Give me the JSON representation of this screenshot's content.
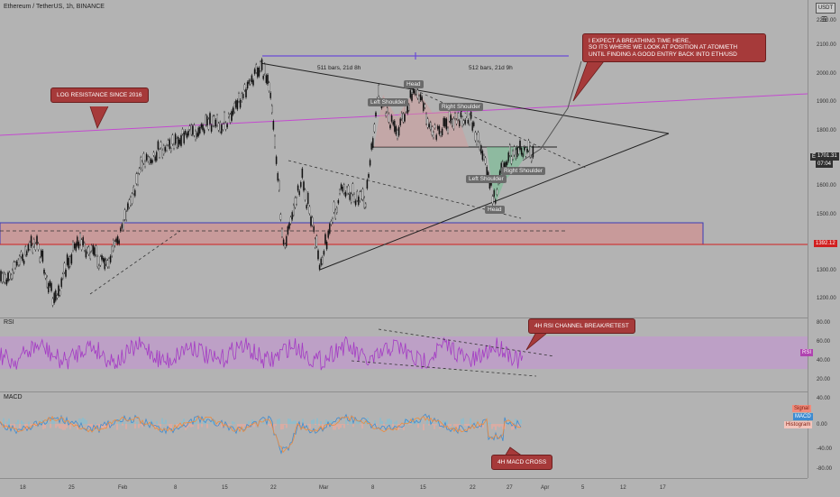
{
  "header": {
    "title": "Ethereum / TetherUS, 1h, BINANCE"
  },
  "axis": {
    "currency_label": "USDT",
    "price_ticks": [
      "2200.00",
      "2100.00",
      "2000.00",
      "1900.00",
      "1800.00",
      "1700.00",
      "1600.00",
      "1500.00",
      "1400.00",
      "1300.00",
      "1200.00"
    ],
    "rsi_ticks": [
      "80.00",
      "60.00",
      "40.00",
      "20.00"
    ],
    "macd_ticks": [
      "40.00",
      "0.00",
      "-40.00",
      "-80.00"
    ],
    "date_ticks": [
      "18",
      "25",
      "Feb",
      "8",
      "15",
      "22",
      "Mar",
      "8",
      "15",
      "22",
      "27",
      "Apr",
      "5",
      "12",
      "17"
    ]
  },
  "price": {
    "symbol_tag": "ETHUSDT",
    "last_price": "1701.31",
    "countdown": "07:04",
    "level_tag": "1392.12"
  },
  "annotations": {
    "log_resistance": "LOG RESISTANCE SINCE 2016",
    "expect_line1": "I EXPECT A BREATHING TIME HERE,",
    "expect_line2": "SO ITS WHERE WE LOOK AT POSITION AT ATOM/ETH",
    "expect_line3": "UNTIL FINDING A GOOD ENTRY BACK INTO ETH/USD",
    "rsi_break": "4H RSI CHANNEL BREAK/RETEST",
    "macd_cross": "4H MACD CROSS",
    "range1": "511 bars, 21d 8h",
    "range2": "512 bars, 21d 9h",
    "head_top": "Head",
    "left_shoulder_top": "Left Shoulder",
    "right_shoulder_top": "Right Shoulder",
    "head_bottom": "Head",
    "left_shoulder_bottom": "Left Shoulder",
    "right_shoulder_bottom": "Right Shoulder"
  },
  "panes": {
    "rsi_label": "RSI",
    "rsi_tag": "RSI",
    "macd_label": "MACD",
    "signal_tag": "Signal",
    "macd_tag": "MACD",
    "histogram_tag": "Histogram"
  },
  "colors": {
    "background": "#b3b3b3",
    "callout": "#a63a3a",
    "log_line": "#c44ad0",
    "rsi_line": "#a43ac4",
    "rsi_band": "#c58fd5",
    "support_zone": "#c89a9a",
    "support_border": "#3b3bb5",
    "red_level": "#d11f1f"
  }
}
